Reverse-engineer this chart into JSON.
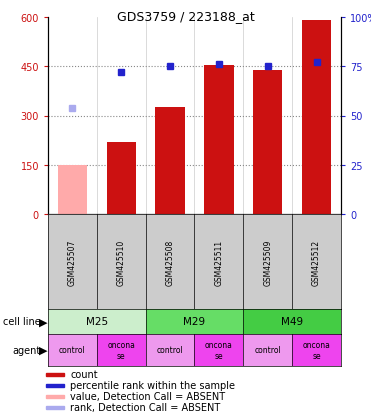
{
  "title": "GDS3759 / 223188_at",
  "samples": [
    "GSM425507",
    "GSM425510",
    "GSM425508",
    "GSM425511",
    "GSM425509",
    "GSM425512"
  ],
  "bar_values": [
    150,
    220,
    325,
    455,
    438,
    592
  ],
  "bar_colors": [
    "#ffaaaa",
    "#cc1111",
    "#cc1111",
    "#cc1111",
    "#cc1111",
    "#cc1111"
  ],
  "rank_values": [
    54,
    72,
    75,
    76,
    75,
    77
  ],
  "rank_colors": [
    "#aaaaee",
    "#2222cc",
    "#2222cc",
    "#2222cc",
    "#2222cc",
    "#2222cc"
  ],
  "cell_line_groups": [
    {
      "label": "M25",
      "span": [
        0,
        2
      ],
      "color": "#cceecc"
    },
    {
      "label": "M29",
      "span": [
        2,
        4
      ],
      "color": "#66dd66"
    },
    {
      "label": "M49",
      "span": [
        4,
        6
      ],
      "color": "#44cc44"
    }
  ],
  "agent_groups": [
    {
      "label": "control",
      "span": [
        0,
        1
      ],
      "color": "#ee99ee"
    },
    {
      "label": "oncona\nse",
      "span": [
        1,
        2
      ],
      "color": "#ee44ee"
    },
    {
      "label": "control",
      "span": [
        2,
        3
      ],
      "color": "#ee99ee"
    },
    {
      "label": "oncona\nse",
      "span": [
        3,
        4
      ],
      "color": "#ee44ee"
    },
    {
      "label": "control",
      "span": [
        4,
        5
      ],
      "color": "#ee99ee"
    },
    {
      "label": "oncona\nse",
      "span": [
        5,
        6
      ],
      "color": "#ee44ee"
    }
  ],
  "ylim_left": [
    0,
    600
  ],
  "ylim_right": [
    0,
    100
  ],
  "yticks_left": [
    0,
    150,
    300,
    450,
    600
  ],
  "yticks_right": [
    0,
    25,
    50,
    75,
    100
  ],
  "ytick_labels_right": [
    "0",
    "25",
    "50",
    "75",
    "100%"
  ],
  "bar_width": 0.6,
  "left_axis_color": "#cc1111",
  "right_axis_color": "#2222cc",
  "grid_color": "#888888",
  "legend_entries": [
    {
      "label": "count",
      "color": "#cc1111"
    },
    {
      "label": "percentile rank within the sample",
      "color": "#2222cc"
    },
    {
      "label": "value, Detection Call = ABSENT",
      "color": "#ffaaaa"
    },
    {
      "label": "rank, Detection Call = ABSENT",
      "color": "#aaaaee"
    }
  ]
}
